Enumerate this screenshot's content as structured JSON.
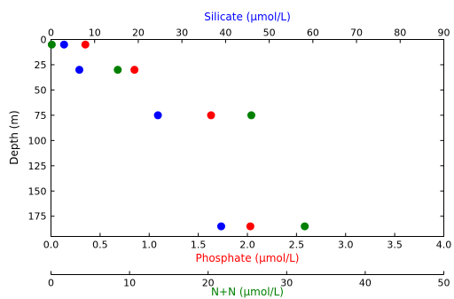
{
  "chart_data": {
    "type": "scatter",
    "y_axis": {
      "label": "Depth (m)",
      "range": [
        0,
        195
      ],
      "inverted": true,
      "ticks": [
        0,
        25,
        50,
        75,
        100,
        125,
        150,
        175
      ]
    },
    "x_axes": [
      {
        "id": "silicate",
        "label": "Silicate (μmol/L)",
        "position": "top",
        "color": "#0000ff",
        "range": [
          0,
          90
        ],
        "ticks": [
          0,
          10,
          20,
          30,
          40,
          50,
          60,
          70,
          80,
          90
        ]
      },
      {
        "id": "phosphate",
        "label": "Phosphate (μmol/L)",
        "position": "bottom",
        "color": "#ff0000",
        "range": [
          0,
          4.0
        ],
        "ticks": [
          0.0,
          0.5,
          1.0,
          1.5,
          2.0,
          2.5,
          3.0,
          3.5,
          4.0
        ]
      },
      {
        "id": "nn",
        "label": "N+N (μmol/L)",
        "position": "bottom-offset",
        "color": "#008000",
        "range": [
          0,
          50
        ],
        "ticks": [
          0,
          10,
          20,
          30,
          40,
          50
        ]
      }
    ],
    "series": [
      {
        "axis": "silicate",
        "color": "#0000ff",
        "points": [
          {
            "x": 3.0,
            "y": 5
          },
          {
            "x": 6.5,
            "y": 30
          },
          {
            "x": 24.5,
            "y": 75
          },
          {
            "x": 39.0,
            "y": 185
          }
        ]
      },
      {
        "axis": "phosphate",
        "color": "#ff0000",
        "points": [
          {
            "x": 0.35,
            "y": 5
          },
          {
            "x": 0.85,
            "y": 30
          },
          {
            "x": 1.63,
            "y": 75
          },
          {
            "x": 2.03,
            "y": 185
          }
        ]
      },
      {
        "axis": "nn",
        "color": "#008000",
        "points": [
          {
            "x": 0.1,
            "y": 5
          },
          {
            "x": 8.5,
            "y": 30
          },
          {
            "x": 25.5,
            "y": 75
          },
          {
            "x": 32.3,
            "y": 185
          }
        ]
      }
    ]
  }
}
